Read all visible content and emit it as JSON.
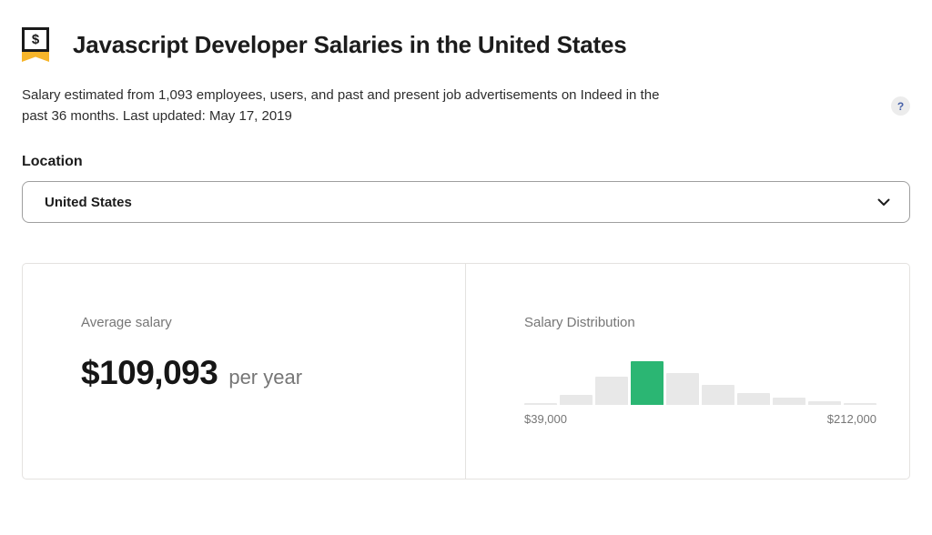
{
  "header": {
    "icon_dollar": "$",
    "title": "Javascript Developer Salaries in the United States"
  },
  "meta": {
    "description": "Salary estimated from 1,093 employees, users, and past and present job advertisements on Indeed in the past 36 months. Last updated: May 17, 2019",
    "help_label": "?"
  },
  "location": {
    "label": "Location",
    "selected_value": "United States"
  },
  "card": {
    "average": {
      "label": "Average salary",
      "value": "$109,093",
      "period": "per year"
    },
    "distribution": {
      "label": "Salary Distribution"
    }
  },
  "chart_data": {
    "type": "bar",
    "title": "Salary Distribution",
    "values": [
      2,
      10,
      28,
      44,
      32,
      20,
      12,
      7,
      4,
      2
    ],
    "unit": "relative bar height (no y-axis labels shown)",
    "highlight_index": 3,
    "x_min_label": "$39,000",
    "x_max_label": "$212,000",
    "bar_color": "#e8e8e8",
    "highlight_color": "#2bb673",
    "legend": "none",
    "grid": "off"
  },
  "colors": {
    "accent_green": "#2bb673",
    "ribbon_yellow": "#f6b52a",
    "help_blue": "#4660a8",
    "muted_text": "#767676",
    "card_border": "#e4e2e0"
  }
}
